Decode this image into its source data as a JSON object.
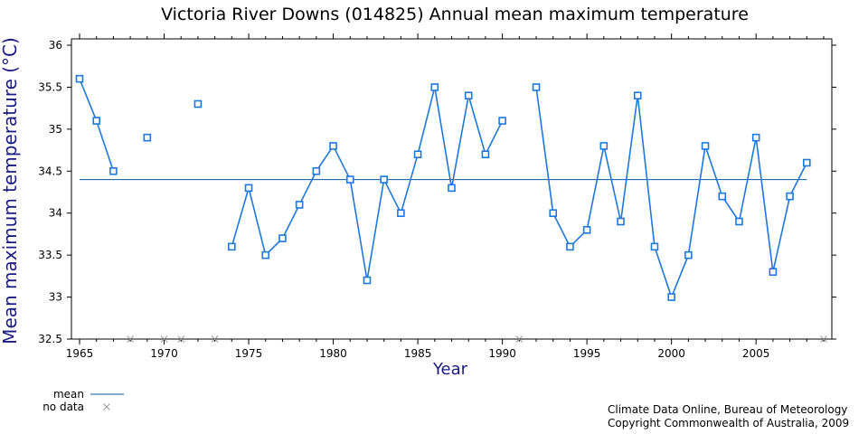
{
  "chart_data": {
    "type": "line",
    "title": "Victoria River Downs (014825) Annual mean maximum temperature",
    "xlabel": "Year",
    "ylabel": "Mean maximum temperature (°C)",
    "xlim": [
      1965,
      2009
    ],
    "ylim": [
      32.5,
      36.1
    ],
    "x_ticks": [
      1965,
      1970,
      1975,
      1980,
      1985,
      1990,
      1995,
      2000,
      2005
    ],
    "y_ticks": [
      32.5,
      33,
      33.5,
      34,
      34.5,
      35,
      35.5,
      36
    ],
    "series": [
      {
        "name": "",
        "color": "#1e78dc",
        "points": [
          [
            1965,
            35.6
          ],
          [
            1966,
            35.1
          ],
          [
            1967,
            34.5
          ],
          [
            1969,
            34.9
          ],
          [
            1972,
            35.3
          ],
          [
            1974,
            33.6
          ],
          [
            1975,
            34.3
          ],
          [
            1976,
            33.5
          ],
          [
            1977,
            33.7
          ],
          [
            1978,
            34.1
          ],
          [
            1979,
            34.5
          ],
          [
            1980,
            34.8
          ],
          [
            1981,
            34.4
          ],
          [
            1982,
            33.2
          ],
          [
            1983,
            34.4
          ],
          [
            1984,
            34.0
          ],
          [
            1985,
            34.7
          ],
          [
            1986,
            35.5
          ],
          [
            1987,
            34.3
          ],
          [
            1988,
            35.4
          ],
          [
            1989,
            34.7
          ],
          [
            1990,
            35.1
          ],
          [
            1992,
            35.5
          ],
          [
            1993,
            34.0
          ],
          [
            1994,
            33.6
          ],
          [
            1995,
            33.8
          ],
          [
            1996,
            34.8
          ],
          [
            1997,
            33.9
          ],
          [
            1998,
            35.4
          ],
          [
            1999,
            33.6
          ],
          [
            2000,
            33.0
          ],
          [
            2001,
            33.5
          ],
          [
            2002,
            34.8
          ],
          [
            2003,
            34.2
          ],
          [
            2004,
            33.9
          ],
          [
            2005,
            34.9
          ],
          [
            2006,
            33.3
          ],
          [
            2007,
            34.2
          ],
          [
            2008,
            34.6
          ]
        ]
      }
    ],
    "mean": 34.4,
    "mean_color": "#0a5aa0",
    "no_data_years": [
      1968,
      1970,
      1971,
      1973,
      1991,
      2009
    ],
    "no_data_color": "#999999",
    "legend": [
      {
        "label": "mean",
        "kind": "line"
      },
      {
        "label": "no data",
        "kind": "x"
      }
    ],
    "legend_position": "bottom-left",
    "grid": false
  },
  "credits": {
    "line1": "Climate Data Online, Bureau of Meteorology",
    "line2": "Copyright Commonwealth of Australia, 2009"
  }
}
